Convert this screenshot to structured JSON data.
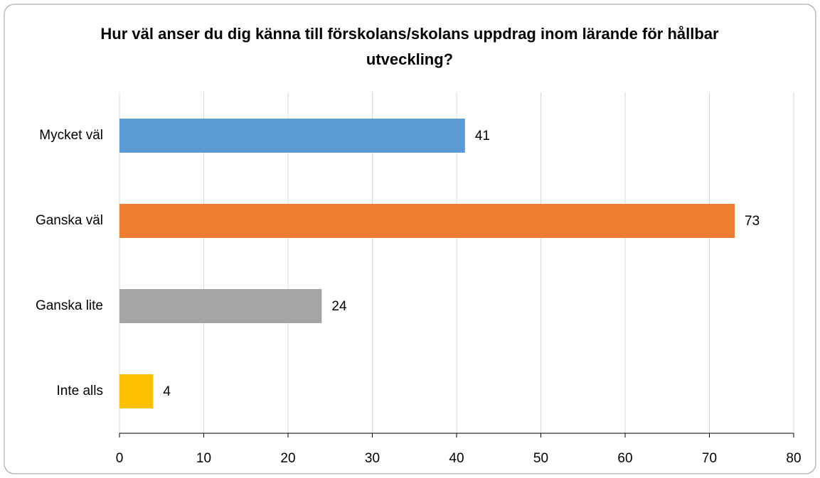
{
  "chart_data": {
    "type": "barh",
    "title": "Hur väl anser du dig känna till förskolans/skolans uppdrag inom lärande för hållbar utveckling?",
    "categories": [
      "Mycket väl",
      "Ganska väl",
      "Ganska lite",
      "Inte alls"
    ],
    "values": [
      41,
      73,
      24,
      4
    ],
    "colors": [
      "#5b9bd5",
      "#ed7d31",
      "#a5a5a5",
      "#ffc000"
    ],
    "xlim": [
      0,
      80
    ],
    "xticks": [
      0,
      10,
      20,
      30,
      40,
      50,
      60,
      70,
      80
    ],
    "grid": true
  }
}
